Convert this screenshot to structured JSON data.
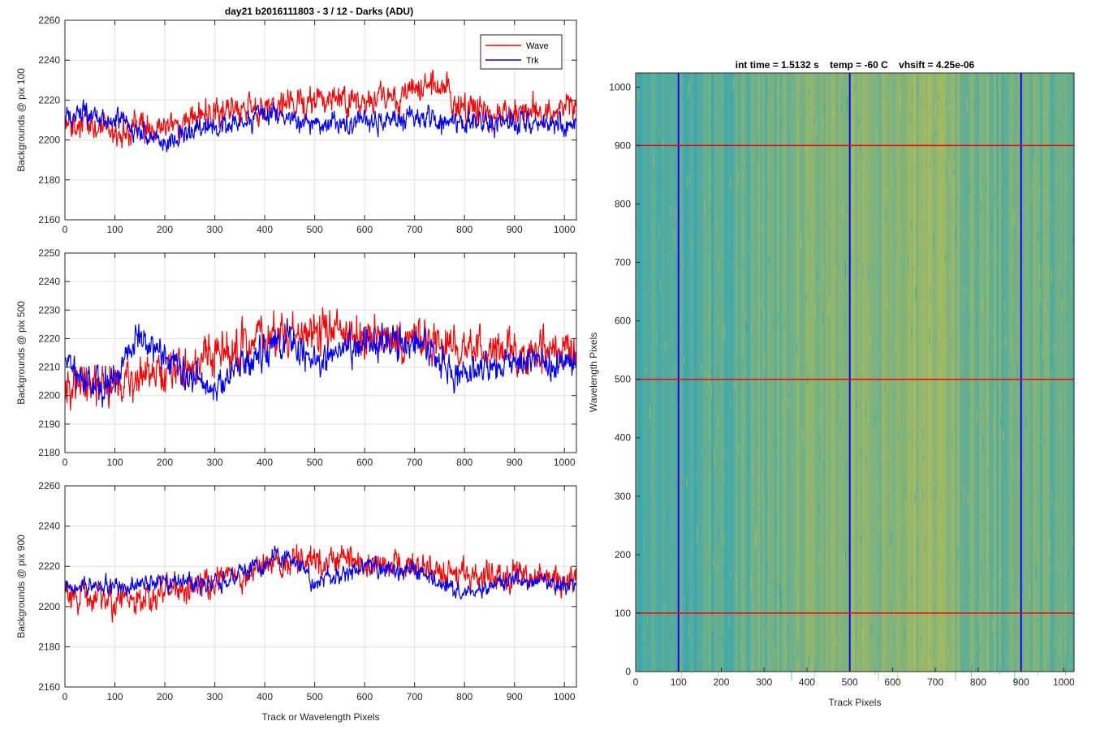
{
  "figure": {
    "suptitle": "day21 b2016111803 - 3 / 12 - Darks (ADU)"
  },
  "chart_data": [
    {
      "type": "line",
      "panel": "top-left",
      "title": "",
      "xlabel": "",
      "ylabel": "Backgrounds @ pix 100",
      "xlim": [
        0,
        1024
      ],
      "ylim": [
        2160,
        2260
      ],
      "xticks": [
        0,
        100,
        200,
        300,
        400,
        500,
        600,
        700,
        800,
        900,
        1000
      ],
      "yticks": [
        2160,
        2180,
        2200,
        2220,
        2240,
        2260
      ],
      "grid": true,
      "legend": {
        "placement": "top-right",
        "entries": [
          "Wave",
          "Trk"
        ]
      },
      "series": [
        {
          "name": "Wave",
          "color": "#ff0000",
          "n_points": 1024,
          "trend_x": [
            0,
            100,
            200,
            300,
            400,
            500,
            600,
            700,
            750,
            800,
            900,
            1024
          ],
          "trend_y": [
            2207,
            2205,
            2207,
            2214,
            2217,
            2219,
            2220,
            2223,
            2228,
            2215,
            2213,
            2216
          ],
          "noise_amplitude": 8
        },
        {
          "name": "Trk",
          "color": "#0000ff",
          "n_points": 1024,
          "trend_x": [
            0,
            100,
            200,
            300,
            400,
            500,
            600,
            700,
            800,
            900,
            1024
          ],
          "trend_y": [
            2214,
            2210,
            2199,
            2207,
            2213,
            2208,
            2209,
            2210,
            2209,
            2208,
            2207
          ],
          "noise_amplitude": 6
        }
      ]
    },
    {
      "type": "line",
      "panel": "middle-left",
      "title": "",
      "xlabel": "",
      "ylabel": "Backgrounds @ pix 500",
      "xlim": [
        0,
        1024
      ],
      "ylim": [
        2180,
        2250
      ],
      "xticks": [
        0,
        100,
        200,
        300,
        400,
        500,
        600,
        700,
        800,
        900,
        1000
      ],
      "yticks": [
        2180,
        2190,
        2200,
        2210,
        2220,
        2230,
        2240,
        2250
      ],
      "grid": true,
      "series": [
        {
          "name": "Wave",
          "color": "#ff0000",
          "n_points": 1024,
          "trend_x": [
            0,
            100,
            200,
            300,
            400,
            500,
            600,
            700,
            800,
            900,
            1024
          ],
          "trend_y": [
            2205,
            2203,
            2207,
            2214,
            2220,
            2223,
            2221,
            2220,
            2216,
            2216,
            2214
          ],
          "noise_amplitude": 8
        },
        {
          "name": "Trk",
          "color": "#0000ff",
          "n_points": 1024,
          "trend_x": [
            0,
            50,
            100,
            150,
            200,
            300,
            400,
            450,
            500,
            600,
            700,
            800,
            900,
            1024
          ],
          "trend_y": [
            2212,
            2204,
            2206,
            2222,
            2212,
            2203,
            2216,
            2220,
            2212,
            2218,
            2219,
            2206,
            2213,
            2212
          ],
          "noise_amplitude": 6
        }
      ]
    },
    {
      "type": "line",
      "panel": "bottom-left",
      "title": "",
      "xlabel": "Track or Wavelength Pixels",
      "ylabel": "Backgrounds @ pix 900",
      "xlim": [
        0,
        1024
      ],
      "ylim": [
        2160,
        2260
      ],
      "xticks": [
        0,
        100,
        200,
        300,
        400,
        500,
        600,
        700,
        800,
        900,
        1000
      ],
      "yticks": [
        2160,
        2180,
        2200,
        2220,
        2240,
        2260
      ],
      "grid": true,
      "series": [
        {
          "name": "Wave",
          "color": "#ff0000",
          "n_points": 1024,
          "trend_x": [
            0,
            100,
            200,
            300,
            400,
            500,
            600,
            700,
            800,
            900,
            1024
          ],
          "trend_y": [
            2208,
            2203,
            2207,
            2212,
            2220,
            2224,
            2222,
            2220,
            2215,
            2215,
            2212
          ],
          "noise_amplitude": 8
        },
        {
          "name": "Trk",
          "color": "#0000ff",
          "n_points": 1024,
          "trend_x": [
            0,
            100,
            200,
            300,
            400,
            450,
            500,
            600,
            700,
            800,
            900,
            1024
          ],
          "trend_y": [
            2210,
            2210,
            2214,
            2210,
            2222,
            2226,
            2212,
            2220,
            2218,
            2206,
            2214,
            2210
          ],
          "noise_amplitude": 5
        }
      ]
    },
    {
      "type": "heatmap",
      "panel": "right",
      "title": "int time = 1.5132 s    temp = -60 C    vhsift = 4.25e-06",
      "xlabel": "Track Pixels",
      "ylabel": "Wavelength Pixels",
      "xlim": [
        0,
        1024
      ],
      "ylim": [
        0,
        1024
      ],
      "xticks": [
        0,
        100,
        200,
        300,
        400,
        500,
        600,
        700,
        800,
        900,
        1000
      ],
      "yticks": [
        0,
        100,
        200,
        300,
        400,
        500,
        600,
        700,
        800,
        900,
        1000
      ],
      "colormap": "parula",
      "low_color": "#1aa2c8",
      "high_color": "#d8c23a",
      "column_profile_x": [
        0,
        100,
        200,
        300,
        400,
        450,
        500,
        550,
        650,
        700,
        750,
        800,
        900,
        1024
      ],
      "column_profile_level": [
        0.25,
        0.3,
        0.33,
        0.4,
        0.5,
        0.6,
        0.58,
        0.5,
        0.6,
        0.68,
        0.55,
        0.45,
        0.45,
        0.4
      ],
      "vertical_markers": {
        "color": "#0000ff",
        "x": [
          100,
          500,
          900
        ]
      },
      "horizontal_markers": {
        "color": "#ff0000",
        "y": [
          100,
          500,
          900
        ]
      }
    }
  ]
}
